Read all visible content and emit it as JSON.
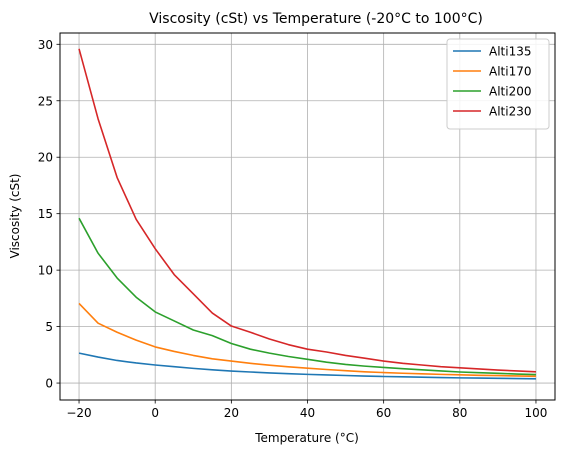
{
  "chart_data": {
    "type": "line",
    "title": "Viscosity (cSt) vs Temperature (-20°C to 100°C)",
    "xlabel": "Temperature (°C)",
    "ylabel": "Viscosity (cSt)",
    "xlim": [
      -25,
      105
    ],
    "ylim": [
      -1.5,
      31
    ],
    "xticks": [
      -20,
      0,
      20,
      40,
      60,
      80,
      100
    ],
    "yticks": [
      0,
      5,
      10,
      15,
      20,
      25,
      30
    ],
    "xtick_labels": [
      "−20",
      "0",
      "20",
      "40",
      "60",
      "80",
      "100"
    ],
    "ytick_labels": [
      "0",
      "5",
      "10",
      "15",
      "20",
      "25",
      "30"
    ],
    "grid": true,
    "legend_position": "top-right",
    "x": [
      -20,
      -15,
      -10,
      -5,
      0,
      5,
      10,
      15,
      20,
      25,
      30,
      35,
      40,
      45,
      50,
      55,
      60,
      65,
      70,
      75,
      80,
      85,
      90,
      95,
      100
    ],
    "series": [
      {
        "name": "Alti135",
        "color": "#1f77b4",
        "values": [
          2.65,
          2.3,
          2.0,
          1.78,
          1.6,
          1.45,
          1.3,
          1.17,
          1.06,
          0.98,
          0.9,
          0.83,
          0.77,
          0.72,
          0.67,
          0.62,
          0.58,
          0.55,
          0.52,
          0.49,
          0.46,
          0.44,
          0.42,
          0.4,
          0.38
        ]
      },
      {
        "name": "Alti170",
        "color": "#ff7f0e",
        "values": [
          7.05,
          5.3,
          4.5,
          3.8,
          3.2,
          2.8,
          2.45,
          2.15,
          1.95,
          1.75,
          1.58,
          1.44,
          1.32,
          1.2,
          1.1,
          1.0,
          0.93,
          0.87,
          0.82,
          0.77,
          0.73,
          0.69,
          0.66,
          0.63,
          0.6
        ]
      },
      {
        "name": "Alti200",
        "color": "#2ca02c",
        "values": [
          14.6,
          11.5,
          9.3,
          7.6,
          6.3,
          5.5,
          4.7,
          4.2,
          3.5,
          3.0,
          2.65,
          2.35,
          2.1,
          1.85,
          1.65,
          1.5,
          1.38,
          1.27,
          1.17,
          1.07,
          0.98,
          0.92,
          0.86,
          0.8,
          0.75
        ]
      },
      {
        "name": "Alti230",
        "color": "#d62728",
        "values": [
          29.6,
          23.4,
          18.2,
          14.5,
          11.9,
          9.6,
          7.9,
          6.2,
          5.05,
          4.5,
          3.9,
          3.4,
          3.0,
          2.75,
          2.45,
          2.2,
          1.95,
          1.75,
          1.6,
          1.45,
          1.35,
          1.25,
          1.15,
          1.07,
          1.0
        ]
      }
    ]
  }
}
